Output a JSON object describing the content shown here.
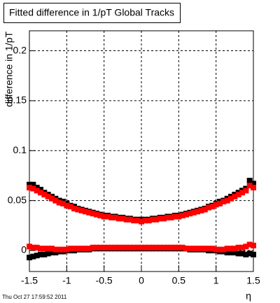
{
  "chart_data": {
    "type": "scatter",
    "title": "Fitted difference in 1/pT  Global Tracks",
    "y_label": "difference in 1/pT",
    "x_label": "η",
    "timestamp": "Thu Oct 27 17:59:52 2011",
    "grid": true,
    "xlim": [
      -1.5,
      1.5
    ],
    "xticks": [
      -1.5,
      -1,
      -0.5,
      0,
      0.5,
      1,
      1.5
    ],
    "ylim": [
      -0.021,
      0.22
    ],
    "yticks": [
      0,
      0.05,
      0.1,
      0.15,
      0.2
    ],
    "x": [
      -1.5,
      -1.45,
      -1.4,
      -1.35,
      -1.3,
      -1.25,
      -1.2,
      -1.15,
      -1.1,
      -1.05,
      -1,
      -0.95,
      -0.9,
      -0.85,
      -0.8,
      -0.75,
      -0.7,
      -0.65,
      -0.6,
      -0.55,
      -0.5,
      -0.45,
      -0.4,
      -0.35,
      -0.3,
      -0.25,
      -0.2,
      -0.15,
      -0.1,
      -0.05,
      0,
      0.05,
      0.1,
      0.15,
      0.2,
      0.25,
      0.3,
      0.35,
      0.4,
      0.45,
      0.5,
      0.55,
      0.6,
      0.65,
      0.7,
      0.75,
      0.8,
      0.85,
      0.9,
      0.95,
      1,
      1.05,
      1.1,
      1.15,
      1.2,
      1.25,
      1.3,
      1.35,
      1.4,
      1.45,
      1.5
    ],
    "series": [
      {
        "color": "#000000",
        "values": [
          0.066,
          0.066,
          0.063,
          0.061,
          0.058,
          0.056,
          0.054,
          0.052,
          0.05,
          0.049,
          0.047,
          0.045,
          0.044,
          0.042,
          0.041,
          0.04,
          0.039,
          0.038,
          0.037,
          0.036,
          0.035,
          0.035,
          0.034,
          0.034,
          0.033,
          0.033,
          0.032,
          0.032,
          0.031,
          0.031,
          0.031,
          0.031,
          0.031,
          0.032,
          0.032,
          0.033,
          0.033,
          0.034,
          0.034,
          0.035,
          0.035,
          0.036,
          0.037,
          0.038,
          0.039,
          0.04,
          0.041,
          0.042,
          0.044,
          0.045,
          0.047,
          0.049,
          0.05,
          0.052,
          0.054,
          0.056,
          0.058,
          0.06,
          0.062,
          0.07,
          0.067
        ]
      },
      {
        "color": "#ff0000",
        "values": [
          0.063,
          0.062,
          0.06,
          0.058,
          0.056,
          0.054,
          0.052,
          0.05,
          0.048,
          0.047,
          0.045,
          0.044,
          0.042,
          0.041,
          0.04,
          0.039,
          0.038,
          0.037,
          0.036,
          0.035,
          0.034,
          0.034,
          0.033,
          0.033,
          0.032,
          0.032,
          0.031,
          0.031,
          0.03,
          0.03,
          0.029,
          0.03,
          0.03,
          0.031,
          0.031,
          0.032,
          0.032,
          0.033,
          0.033,
          0.034,
          0.034,
          0.035,
          0.036,
          0.037,
          0.038,
          0.039,
          0.04,
          0.041,
          0.043,
          0.044,
          0.046,
          0.047,
          0.049,
          0.05,
          0.052,
          0.054,
          0.056,
          0.058,
          0.06,
          0.065,
          0.063
        ]
      },
      {
        "color": "#000000",
        "values": [
          -0.007,
          -0.006,
          -0.005,
          -0.004,
          -0.004,
          -0.003,
          -0.002,
          -0.002,
          -0.001,
          -0.001,
          0,
          0,
          0,
          0.001,
          0.001,
          0.001,
          0.001,
          0.002,
          0.002,
          0.002,
          0.002,
          0.002,
          0.002,
          0.002,
          0.002,
          0.002,
          0.002,
          0.002,
          0.002,
          0.002,
          0.002,
          0.002,
          0.002,
          0.002,
          0.002,
          0.002,
          0.002,
          0.002,
          0.002,
          0.002,
          0.002,
          0.002,
          0.002,
          0.001,
          0.001,
          0.001,
          0.001,
          0.001,
          0,
          0,
          0,
          -0.001,
          -0.001,
          -0.002,
          -0.002,
          -0.002,
          -0.003,
          -0.003,
          -0.004,
          -0.003,
          -0.004
        ]
      },
      {
        "color": "#ff0000",
        "values": [
          0.004,
          0.003,
          0.003,
          0.002,
          0.002,
          0.002,
          0.002,
          0.001,
          0.001,
          0.001,
          0.001,
          0.002,
          0.002,
          0.002,
          0.002,
          0.002,
          0.002,
          0.003,
          0.003,
          0.003,
          0.003,
          0.003,
          0.003,
          0.003,
          0.003,
          0.003,
          0.003,
          0.003,
          0.003,
          0.003,
          0.003,
          0.003,
          0.003,
          0.003,
          0.003,
          0.003,
          0.003,
          0.003,
          0.003,
          0.003,
          0.003,
          0.003,
          0.002,
          0.002,
          0.002,
          0.002,
          0.002,
          0.002,
          0.002,
          0.002,
          0.001,
          0.001,
          0.001,
          0.002,
          0.002,
          0.002,
          0.003,
          0.003,
          0.004,
          0.006,
          0.005
        ]
      }
    ]
  }
}
